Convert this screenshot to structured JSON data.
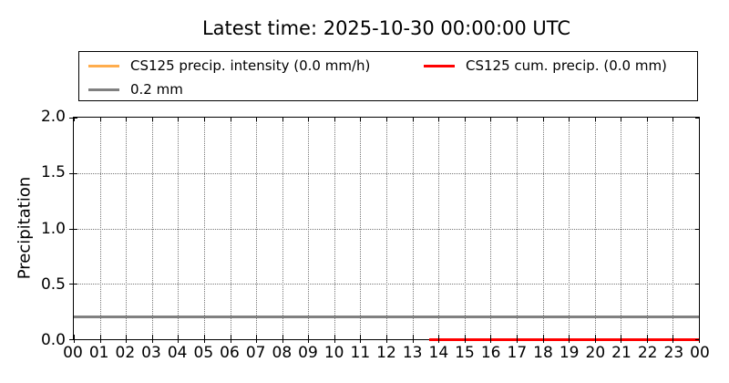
{
  "title": "Latest time: 2025-10-30 00:00:00 UTC",
  "legend": {
    "entries": [
      {
        "name": "precip-intensity",
        "label": "CS125 precip. intensity (0.0 mm/h)",
        "color": "#FFAD4D"
      },
      {
        "name": "cum-precip",
        "label": "CS125 cum. precip. (0.0 mm)",
        "color": "#FF0000"
      },
      {
        "name": "threshold",
        "label": "0.2 mm",
        "color": "#808080"
      }
    ]
  },
  "chart_data": {
    "type": "line",
    "title": "Latest time: 2025-10-30 00:00:00 UTC",
    "xlabel": "",
    "ylabel": "Precipitation",
    "xlim": [
      0,
      24
    ],
    "ylim": [
      0.0,
      2.0
    ],
    "grid": true,
    "grid_style": "dotted",
    "legend_position": "upper center, 2 columns, framed",
    "x_ticks": [
      "00",
      "01",
      "02",
      "03",
      "04",
      "05",
      "06",
      "07",
      "08",
      "09",
      "10",
      "11",
      "12",
      "13",
      "14",
      "15",
      "16",
      "17",
      "18",
      "19",
      "20",
      "21",
      "22",
      "23",
      "00"
    ],
    "y_ticks": [
      "0.0",
      "0.5",
      "1.0",
      "1.5",
      "2.0"
    ],
    "series": [
      {
        "name": "CS125 precip. intensity (0.0 mm/h)",
        "color": "#FFAD4D",
        "x_start": 13.65,
        "x_end": 24,
        "value": 0.0,
        "thickness": 3,
        "note": "constant 0.0 mm/h, hidden beneath cum. precip. line"
      },
      {
        "name": "CS125 cum. precip. (0.0 mm)",
        "color": "#FF0000",
        "x_start": 13.65,
        "x_end": 24,
        "value": 0.0,
        "thickness": 3,
        "note": "constant 0.0 mm along x-axis"
      },
      {
        "name": "0.2 mm",
        "color": "#808080",
        "x_start": 0,
        "x_end": 24,
        "value": 0.2,
        "thickness": 3,
        "note": "horizontal threshold line"
      }
    ]
  }
}
